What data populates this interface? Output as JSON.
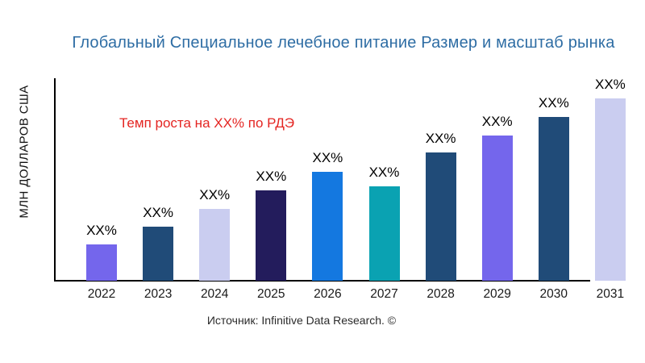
{
  "title": "Глобальный Специальное лечебное питание Размер и масштаб рынка",
  "growth_note": "Темп роста на XX% по РДЭ",
  "source": "Источник: Infinitive Data Research. ©",
  "colors": {
    "title": "#2e6da4",
    "growth_note": "#e42522",
    "axis": "#000000"
  },
  "chart_data": {
    "type": "bar",
    "title": "Глобальный Специальное лечебное питание Размер и масштаб рынка",
    "xlabel": "",
    "ylabel": "МЛН ДОЛЛАРОВ США",
    "categories": [
      "2022",
      "2023",
      "2024",
      "2025",
      "2026",
      "2027",
      "2028",
      "2029",
      "2030",
      "2031"
    ],
    "value_labels": [
      "XX%",
      "XX%",
      "XX%",
      "XX%",
      "XX%",
      "XX%",
      "XX%",
      "XX%",
      "XX%",
      "XX%"
    ],
    "values_relative_height": [
      45,
      67,
      89,
      112,
      135,
      117,
      159,
      180,
      203,
      226
    ],
    "bar_colors": [
      "#7466ec",
      "#204b78",
      "#cacdf0",
      "#231c5c",
      "#1478e0",
      "#0aa2b2",
      "#204b78",
      "#7466ec",
      "#204b78",
      "#cacdf0"
    ],
    "numeric_axis_shown": false,
    "grid": false,
    "legend": "none"
  }
}
